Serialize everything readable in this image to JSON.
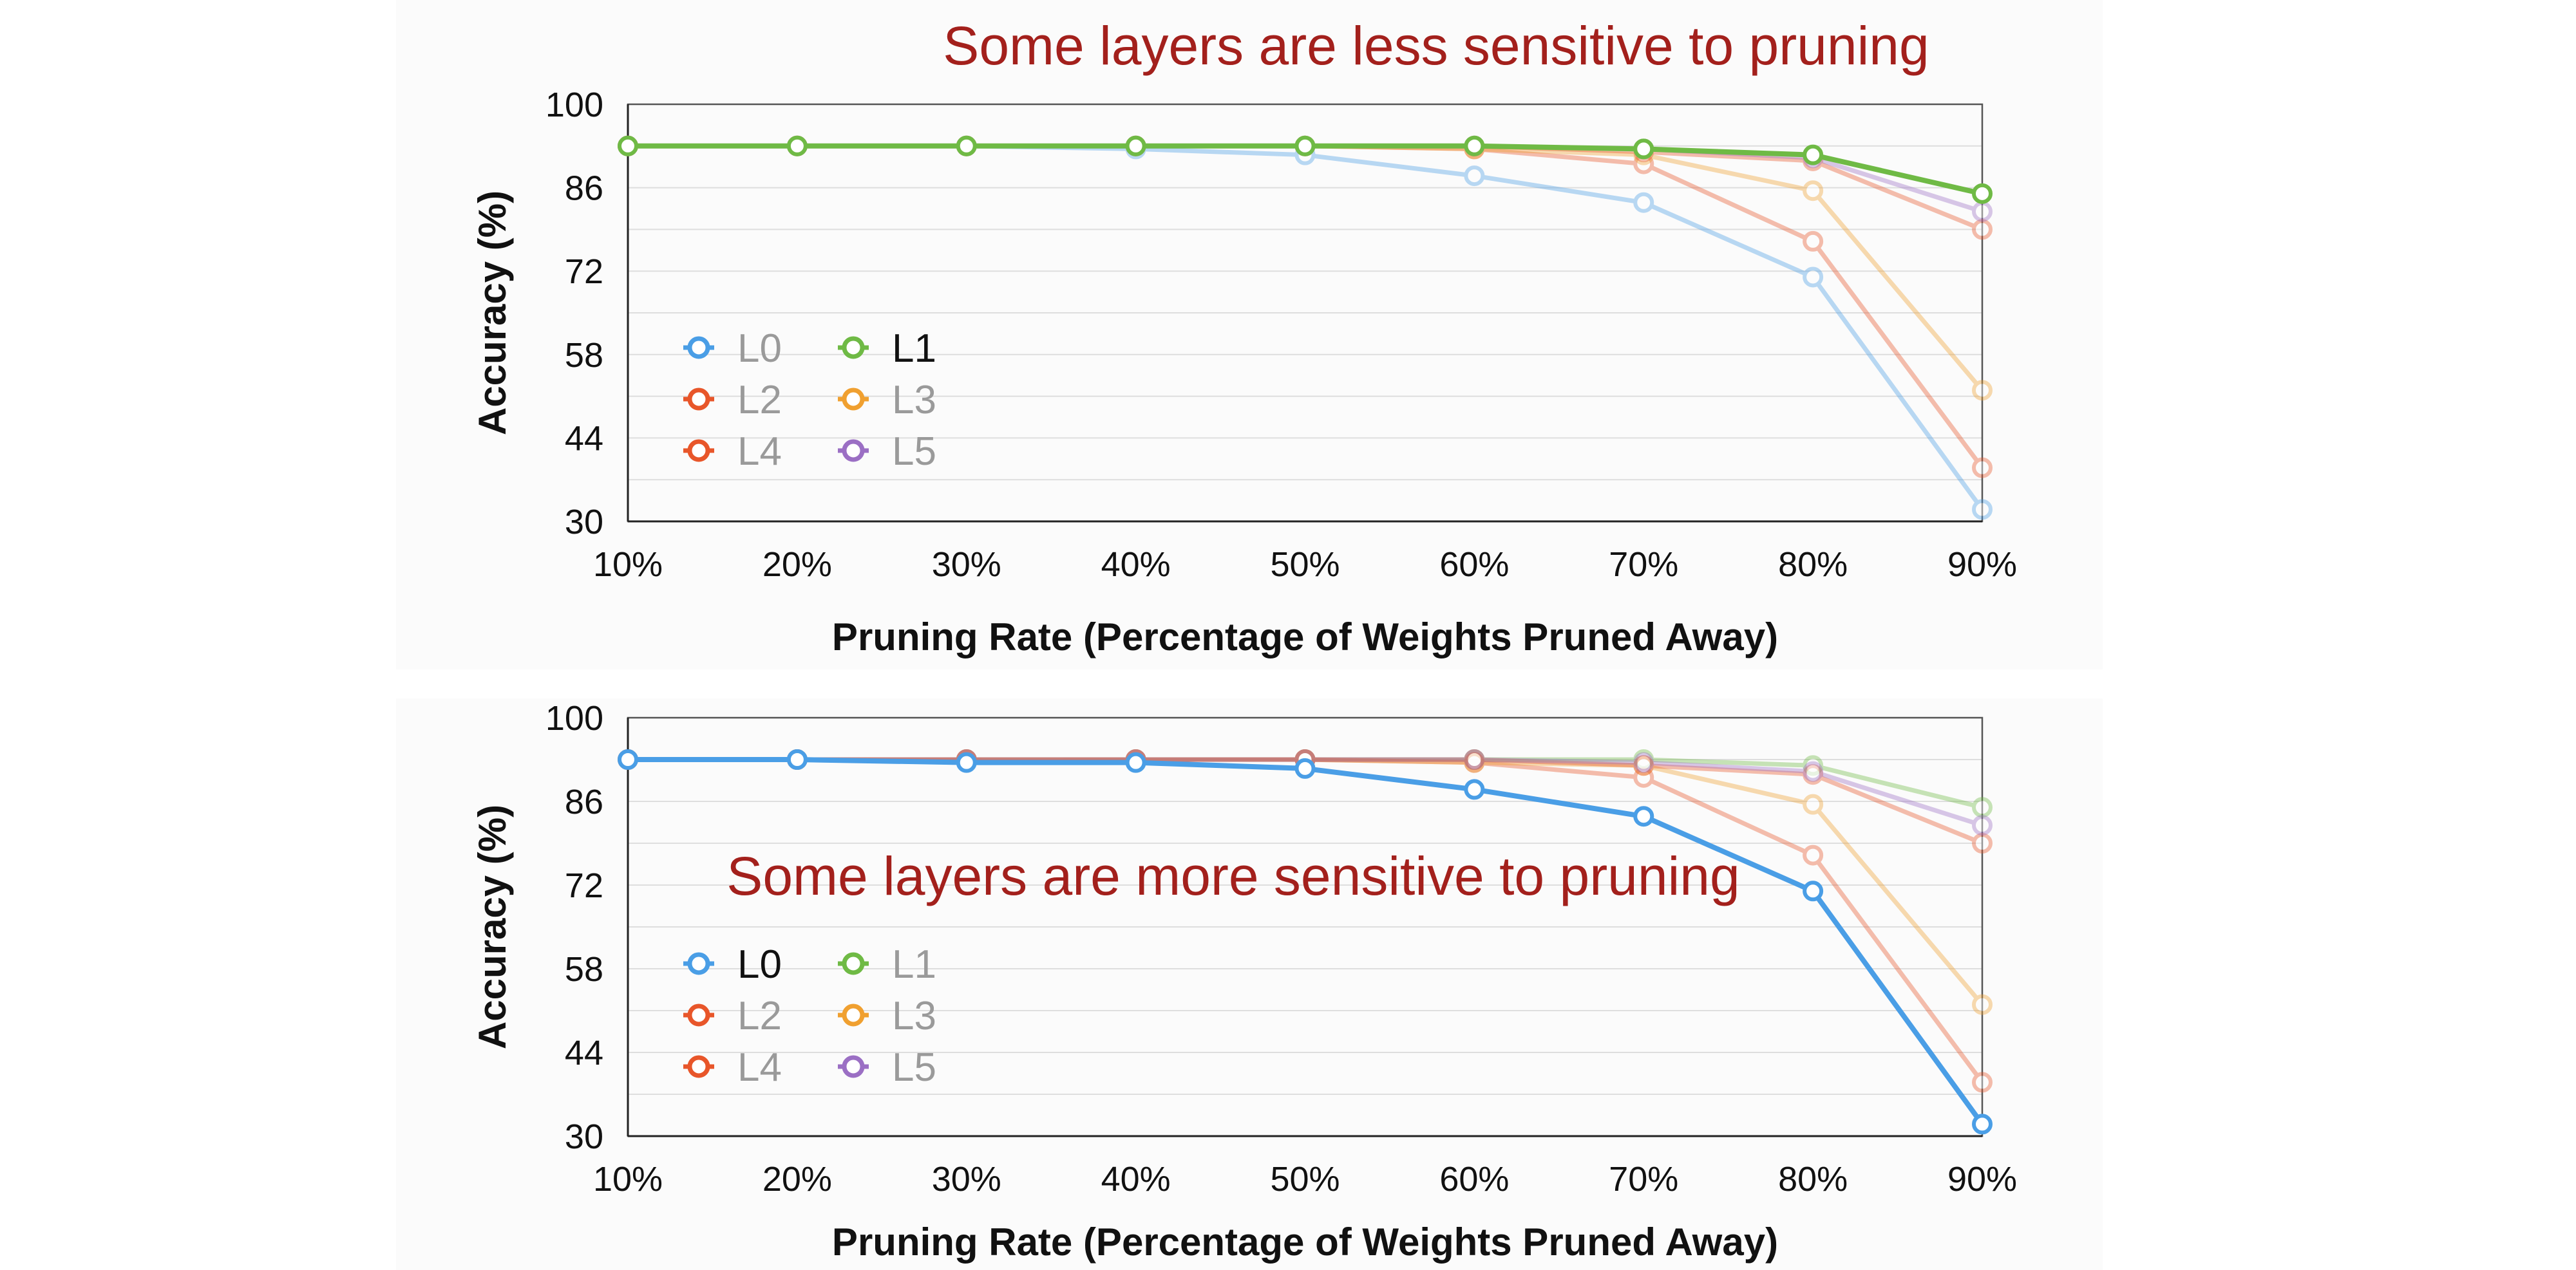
{
  "chart_data": [
    {
      "type": "line",
      "title": "Some layers are less sensitive to pruning",
      "xlabel": "Pruning Rate (Percentage of Weights Pruned Away)",
      "ylabel": "Accuracy (%)",
      "categories": [
        "10%",
        "20%",
        "30%",
        "40%",
        "50%",
        "60%",
        "70%",
        "80%",
        "90%"
      ],
      "yticks": [
        "100",
        "86",
        "72",
        "58",
        "44",
        "30"
      ],
      "ylim": [
        30,
        100
      ],
      "grid": true,
      "legend_position": "lower-left",
      "highlighted_series": [
        "L1"
      ],
      "series": [
        {
          "name": "L0",
          "color": "#4a9ee6",
          "values": [
            93,
            93,
            93,
            92.5,
            91.5,
            88,
            83.5,
            71,
            32
          ]
        },
        {
          "name": "L1",
          "color": "#6fba45",
          "values": [
            93,
            93,
            93,
            93,
            93,
            93,
            92.5,
            91.5,
            85
          ]
        },
        {
          "name": "L2",
          "color": "#e8562a",
          "values": [
            93,
            93,
            93,
            93,
            93,
            92.5,
            90,
            77,
            39
          ]
        },
        {
          "name": "L3",
          "color": "#f0a030",
          "values": [
            93,
            93,
            93,
            93,
            93,
            92.5,
            91.5,
            85.5,
            52
          ]
        },
        {
          "name": "L4",
          "color": "#e8562a",
          "values": [
            93,
            93,
            93,
            93,
            93,
            93,
            92,
            90.5,
            79
          ]
        },
        {
          "name": "L5",
          "color": "#9b6fc4",
          "values": [
            93,
            93,
            93,
            93,
            93,
            93,
            92.5,
            91,
            82
          ]
        }
      ]
    },
    {
      "type": "line",
      "title": "Some layers are more sensitive to pruning",
      "xlabel": "Pruning Rate (Percentage of Weights Pruned Away)",
      "ylabel": "Accuracy (%)",
      "categories": [
        "10%",
        "20%",
        "30%",
        "40%",
        "50%",
        "60%",
        "70%",
        "80%",
        "90%"
      ],
      "yticks": [
        "100",
        "86",
        "72",
        "58",
        "44",
        "30"
      ],
      "ylim": [
        30,
        100
      ],
      "grid": true,
      "legend_position": "lower-left",
      "highlighted_series": [
        "L0"
      ],
      "series": [
        {
          "name": "L0",
          "color": "#4a9ee6",
          "values": [
            93,
            93,
            92.5,
            92.5,
            91.5,
            88,
            83.5,
            71,
            32
          ]
        },
        {
          "name": "L1",
          "color": "#6fba45",
          "values": [
            93,
            93,
            93,
            93,
            93,
            93,
            93,
            92,
            85
          ]
        },
        {
          "name": "L2",
          "color": "#e8562a",
          "values": [
            93,
            93,
            93,
            93,
            93,
            92.5,
            90,
            77,
            39
          ]
        },
        {
          "name": "L3",
          "color": "#f0a030",
          "values": [
            93,
            93,
            93,
            93,
            93,
            92.5,
            92,
            85.5,
            52
          ]
        },
        {
          "name": "L4",
          "color": "#e8562a",
          "values": [
            93,
            93,
            93,
            93,
            93,
            93,
            92,
            90.5,
            79
          ]
        },
        {
          "name": "L5",
          "color": "#9b6fc4",
          "values": [
            93,
            93,
            93,
            93,
            93,
            93,
            92.5,
            91,
            82
          ]
        }
      ]
    }
  ]
}
